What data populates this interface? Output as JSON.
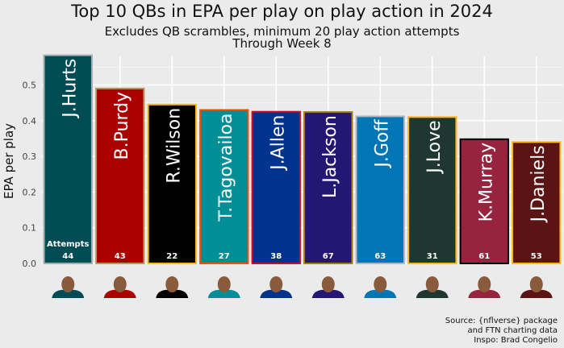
{
  "chart_data": {
    "type": "bar",
    "title": "Top 10 QBs in EPA per play on play action in 2024",
    "subtitle": [
      "Excludes QB scrambles, minimum 20 play action attempts",
      "Through Week 8"
    ],
    "xlabel": "",
    "ylabel": "EPA per play",
    "ylim": [
      0,
      0.58
    ],
    "yticks": [
      "0.0",
      "0.1",
      "0.2",
      "0.3",
      "0.4",
      "0.5"
    ],
    "ytick_values": [
      0,
      0.1,
      0.2,
      0.3,
      0.4,
      0.5
    ],
    "grid": true,
    "attempts_label": "Attempts",
    "categories": [
      "J.Hurts",
      "B.Purdy",
      "R.Wilson",
      "T.Tagovailoa",
      "J.Allen",
      "L.Jackson",
      "J.Goff",
      "J.Love",
      "K.Murray",
      "J.Daniels"
    ],
    "values": [
      0.583,
      0.49,
      0.445,
      0.43,
      0.425,
      0.424,
      0.412,
      0.41,
      0.348,
      0.34
    ],
    "attempts": [
      44,
      43,
      22,
      27,
      38,
      67,
      63,
      31,
      61,
      53
    ],
    "fill_colors": [
      "#004C54",
      "#AA0000",
      "#000000",
      "#008E97",
      "#00338D",
      "#241773",
      "#0076B6",
      "#203731",
      "#97233F",
      "#5A1414"
    ],
    "border_colors": [
      "#A5ACAF",
      "#B3995D",
      "#FFB612",
      "#FC4C02",
      "#C60C30",
      "#9E7C0C",
      "#B0B7BC",
      "#FFB612",
      "#000000",
      "#FFB612"
    ]
  },
  "caption": [
    "Source: {nflverse} package",
    "and FTN charting data",
    "Inspo: Brad Congelio"
  ]
}
